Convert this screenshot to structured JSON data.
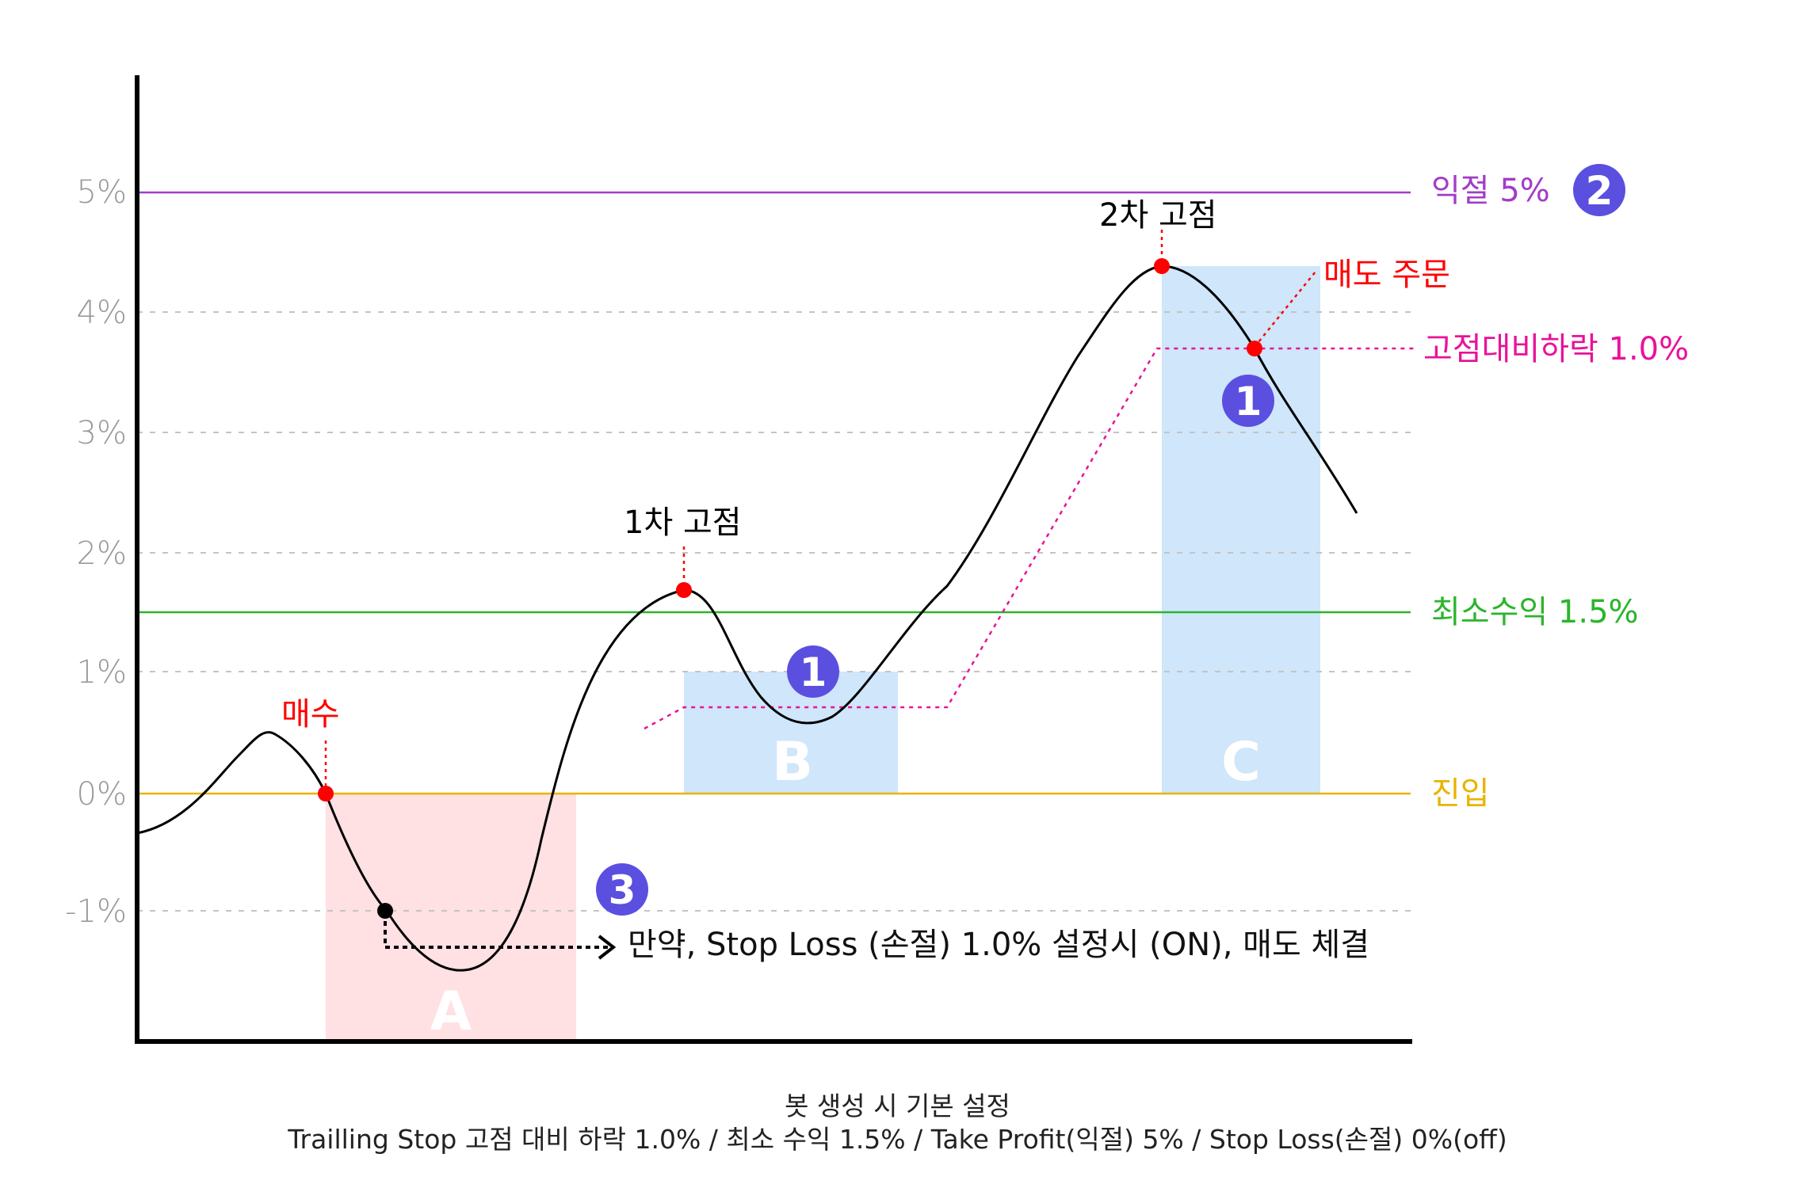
{
  "y_axis": {
    "ticks": [
      "5%",
      "4%",
      "3%",
      "2%",
      "1%",
      "0%",
      "-1%"
    ]
  },
  "levels": {
    "take_profit": {
      "label": "익절 5%",
      "badge": "2",
      "color": "#a23cc8"
    },
    "trailing": {
      "label": "고점대비하락 1.0%",
      "color": "#e8139a"
    },
    "min_profit": {
      "label": "최소수익 1.5%",
      "color": "#2bb52b"
    },
    "entry": {
      "label": "진입",
      "color": "#e8b400"
    }
  },
  "annotations": {
    "buy": "매수",
    "first_peak": "1차 고점",
    "second_peak": "2차 고점",
    "sell_order": "매도 주문",
    "stop_loss_note": "만약, Stop Loss (손절) 1.0% 설정시 (ON), 매도 체결"
  },
  "zones": {
    "a": "A",
    "b": "B",
    "c": "C"
  },
  "badges": {
    "b": "1",
    "c": "1",
    "stop_loss": "3"
  },
  "colors": {
    "badge": "#5b4fe0",
    "red": "#ff0000",
    "zone_red": "#ffe0e3",
    "zone_blue": "#cfe6fb",
    "curve": "#000000"
  },
  "caption": {
    "line1": "봇 생성 시 기본 설정",
    "line2": "Trailling Stop 고점 대비 하락 1.0% / 최소 수익 1.5% / Take Profit(익절) 5% / Stop Loss(손절) 0%(off)"
  }
}
